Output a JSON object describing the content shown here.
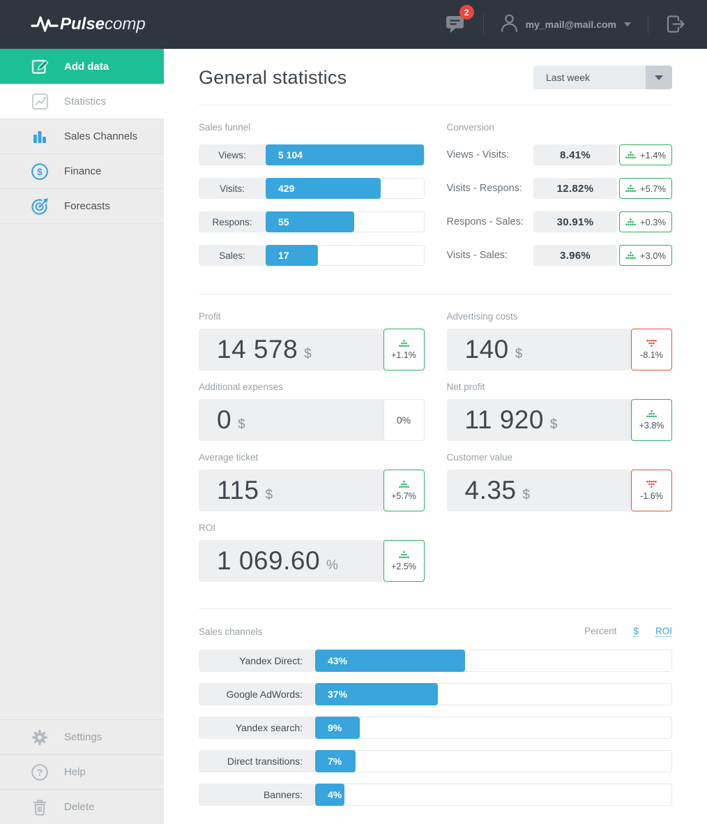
{
  "header": {
    "brand": {
      "bold": "Pulse",
      "light": "comp",
      "icon": "pulse-icon"
    },
    "notifications": {
      "count": "2",
      "icon": "chat-icon"
    },
    "user": {
      "email": "my_mail@mail.com",
      "icon": "person-icon"
    },
    "logout_icon": "logout-icon"
  },
  "sidebar": {
    "items": [
      {
        "label": "Add data",
        "icon": "edit-icon",
        "active": true
      },
      {
        "label": "Statistics",
        "icon": "line-chart-icon",
        "active": false
      },
      {
        "label": "Sales Channels",
        "icon": "bar-chart-icon",
        "active": false
      },
      {
        "label": "Finance",
        "icon": "dollar-circle-icon",
        "active": false
      },
      {
        "label": "Forecasts",
        "icon": "target-icon",
        "active": false
      }
    ],
    "footer_items": [
      {
        "label": "Settings",
        "icon": "gear-icon"
      },
      {
        "label": "Help",
        "icon": "question-circle-icon"
      },
      {
        "label": "Delete",
        "icon": "trash-icon"
      }
    ]
  },
  "main": {
    "title": "General statistics",
    "period_select": {
      "value": "Last week"
    },
    "sales_funnel": {
      "title": "Sales funnel",
      "rows": [
        {
          "label": "Views:",
          "value": "5 104",
          "bar_pct": 100
        },
        {
          "label": "Visits:",
          "value": "429",
          "bar_pct": 73
        },
        {
          "label": "Respons:",
          "value": "55",
          "bar_pct": 56
        },
        {
          "label": "Sales:",
          "value": "17",
          "bar_pct": 33
        }
      ]
    },
    "conversion": {
      "title": "Conversion",
      "rows": [
        {
          "label": "Views - Visits:",
          "value": "8.41%",
          "delta": "+1.4%",
          "trend": "up"
        },
        {
          "label": "Visits - Respons:",
          "value": "12.82%",
          "delta": "+5.7%",
          "trend": "up"
        },
        {
          "label": "Respons - Sales:",
          "value": "30.91%",
          "delta": "+0.3%",
          "trend": "up"
        },
        {
          "label": "Visits - Sales:",
          "value": "3.96%",
          "delta": "+3.0%",
          "trend": "up"
        }
      ]
    },
    "stats": [
      {
        "title": "Profit",
        "value": "14 578",
        "unit": "$",
        "delta": "+1.1%",
        "trend": "up",
        "col": "left"
      },
      {
        "title": "Advertising costs",
        "value": "140",
        "unit": "$",
        "delta": "-8.1%",
        "trend": "down",
        "col": "right"
      },
      {
        "title": "Additional expenses",
        "value": "0",
        "unit": "$",
        "delta": "0%",
        "trend": "flat",
        "col": "left"
      },
      {
        "title": "Net profit",
        "value": "11 920",
        "unit": "$",
        "delta": "+3.8%",
        "trend": "up",
        "col": "right"
      },
      {
        "title": "Average ticket",
        "value": "115",
        "unit": "$",
        "delta": "+5.7%",
        "trend": "up",
        "col": "left"
      },
      {
        "title": "Customer value",
        "value": "4.35",
        "unit": "$",
        "delta": "-1.6%",
        "trend": "down",
        "col": "right"
      },
      {
        "title": "ROI",
        "value": "1 069.60",
        "unit": "%",
        "delta": "+2.5%",
        "trend": "up",
        "col": "left"
      }
    ],
    "sales_channels": {
      "title": "Sales channels",
      "modes": [
        {
          "label": "Percent",
          "active": true
        },
        {
          "label": "$",
          "active": false
        },
        {
          "label": "ROI",
          "active": false
        }
      ],
      "rows": [
        {
          "label": "Yandex Direct:",
          "value": "43%",
          "bar_pct": 42
        },
        {
          "label": "Google AdWords:",
          "value": "37%",
          "bar_pct": 34.5
        },
        {
          "label": "Yandex search:",
          "value": "9%",
          "bar_pct": 12.5
        },
        {
          "label": "Direct transitions:",
          "value": "7%",
          "bar_pct": 11.3
        },
        {
          "label": "Banners:",
          "value": "4%",
          "bar_pct": 8.2
        }
      ]
    }
  },
  "colors": {
    "header_bg": "#2f3640",
    "accent_green": "#1dbf95",
    "accent_blue": "#38a5dc",
    "positive": "#2eb063",
    "negative": "#e8503f",
    "notification_badge": "#e8473e"
  }
}
